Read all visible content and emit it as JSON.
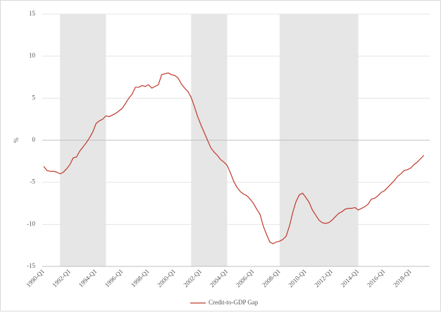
{
  "chart_data": {
    "type": "line",
    "y_label": "%",
    "categories": [
      "1990-Q1",
      null,
      null,
      null,
      null,
      null,
      null,
      null,
      "1992-Q1",
      null,
      null,
      null,
      null,
      null,
      null,
      null,
      "1994-Q1",
      null,
      null,
      null,
      null,
      null,
      null,
      null,
      "1996-Q1",
      null,
      null,
      null,
      null,
      null,
      null,
      null,
      "1998-Q1",
      null,
      null,
      null,
      null,
      null,
      null,
      null,
      "2000-Q1",
      null,
      null,
      null,
      null,
      null,
      null,
      null,
      "2002-Q1",
      null,
      null,
      null,
      null,
      null,
      null,
      null,
      "2004-Q1",
      null,
      null,
      null,
      null,
      null,
      null,
      null,
      "2006-Q1",
      null,
      null,
      null,
      null,
      null,
      null,
      null,
      "2008-Q1",
      null,
      null,
      null,
      null,
      null,
      null,
      null,
      "2010-Q1",
      null,
      null,
      null,
      null,
      null,
      null,
      null,
      "2012-Q1",
      null,
      null,
      null,
      null,
      null,
      null,
      null,
      "2014-Q1",
      null,
      null,
      null,
      null,
      null,
      null,
      null,
      "2016-Q1",
      null,
      null,
      null,
      null,
      null,
      null,
      null,
      "2018-Q1",
      null,
      null,
      null,
      null
    ],
    "series": [
      {
        "name": "Credit-to-GDP Gap",
        "color": "#c0392b",
        "values": [
          -3.1,
          -3.6,
          -3.7,
          -3.7,
          -3.8,
          -4.0,
          -3.8,
          -3.4,
          -2.9,
          -2.1,
          -2.0,
          -1.3,
          -0.8,
          -0.3,
          0.3,
          1.0,
          2.0,
          2.3,
          2.5,
          2.9,
          2.8,
          3.0,
          3.2,
          3.5,
          3.8,
          4.4,
          5.0,
          5.5,
          6.3,
          6.3,
          6.5,
          6.4,
          6.6,
          6.2,
          6.4,
          6.6,
          7.8,
          7.9,
          8.0,
          7.8,
          7.7,
          7.4,
          6.7,
          6.2,
          5.8,
          5.1,
          4.0,
          2.8,
          1.8,
          0.9,
          0.0,
          -0.9,
          -1.4,
          -1.8,
          -2.3,
          -2.6,
          -3.0,
          -3.9,
          -4.9,
          -5.6,
          -6.1,
          -6.4,
          -6.6,
          -7.0,
          -7.5,
          -8.2,
          -8.8,
          -10.2,
          -11.2,
          -12.1,
          -12.3,
          -12.1,
          -12.0,
          -11.8,
          -11.4,
          -10.2,
          -8.6,
          -7.3,
          -6.5,
          -6.3,
          -6.8,
          -7.4,
          -8.3,
          -8.9,
          -9.5,
          -9.8,
          -9.9,
          -9.8,
          -9.5,
          -9.1,
          -8.7,
          -8.5,
          -8.2,
          -8.1,
          -8.1,
          -8.0,
          -8.3,
          -8.1,
          -7.9,
          -7.6,
          -7.0,
          -6.9,
          -6.6,
          -6.2,
          -6.0,
          -5.6,
          -5.2,
          -4.8,
          -4.3,
          -4.0,
          -3.6,
          -3.5,
          -3.3,
          -2.9,
          -2.6,
          -2.2,
          -1.8
        ]
      }
    ],
    "shaded_ranges": [
      [
        5,
        19
      ],
      [
        45,
        56
      ],
      [
        72,
        96
      ]
    ],
    "shade_color": "#e6e6e6",
    "ylim": [
      -15,
      15
    ],
    "yticks": [
      -15,
      -10,
      -5,
      0,
      5,
      10,
      15
    ],
    "grid": true,
    "legend": "bottom"
  }
}
